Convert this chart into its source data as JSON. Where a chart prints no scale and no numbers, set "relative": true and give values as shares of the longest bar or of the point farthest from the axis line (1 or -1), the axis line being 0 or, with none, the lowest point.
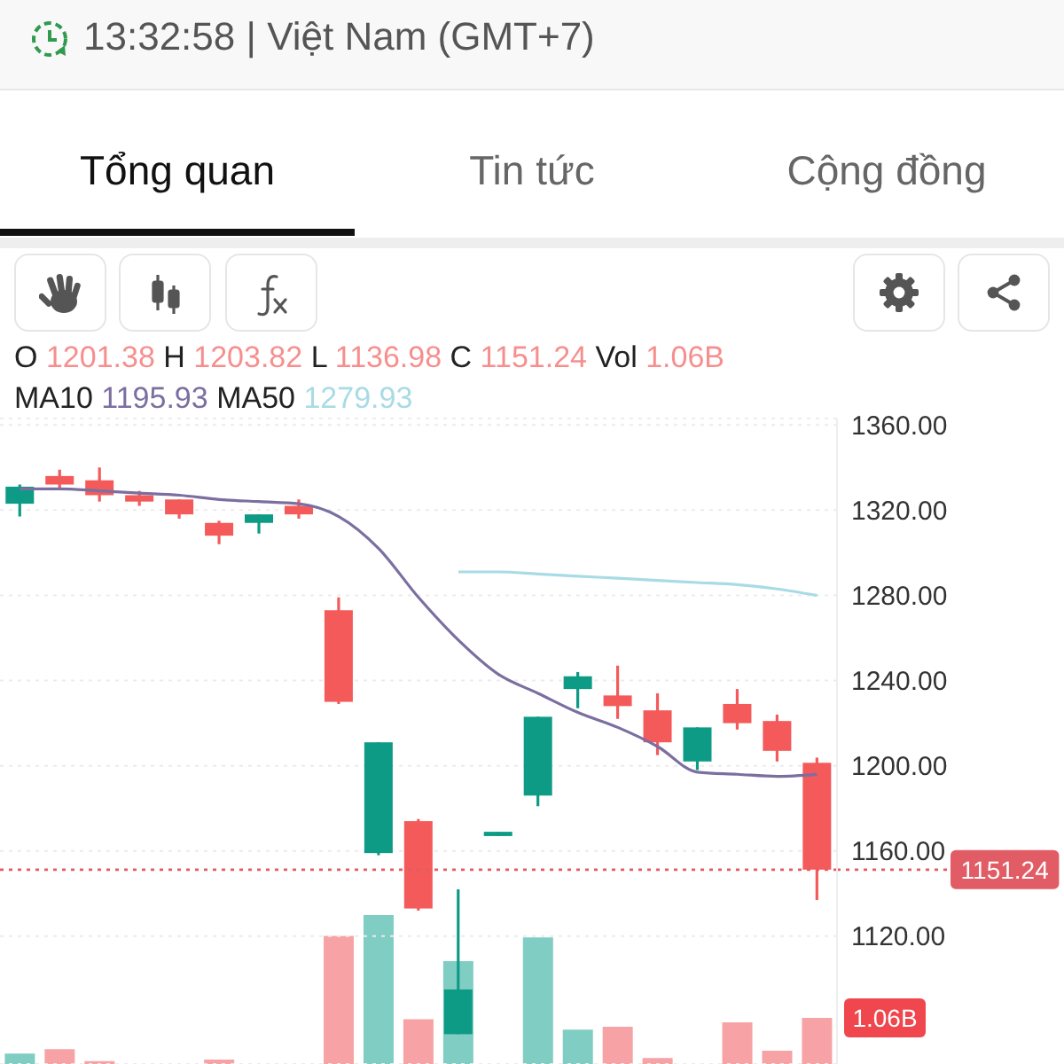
{
  "chart_data": [
    {
      "type": "candlestick",
      "annotations": [
        "13:32:58 | Việt Nam (GMT+7)",
        "Tổng quan",
        "Tin tức",
        "Cộng đồng",
        "O 1201.38 H 1203.82 L 1136.98 C 1151.24 Vol 1.06B",
        "MA10 1195.93 MA50 1279.93"
      ],
      "categories": [
        null,
        null,
        null,
        null,
        null,
        null,
        null,
        null,
        null,
        null,
        null,
        null,
        null,
        null,
        null,
        null,
        null,
        null,
        null,
        null,
        null
      ],
      "ohlc": [
        [
          1323,
          1332,
          1317,
          1331
        ],
        [
          1336,
          1339,
          1330,
          1332
        ],
        [
          1334,
          1340,
          1324,
          1327
        ],
        [
          1327,
          1329,
          1322,
          1324
        ],
        [
          1325,
          1325,
          1316,
          1318
        ],
        [
          1314,
          1315,
          1304,
          1308
        ],
        [
          1314,
          1318,
          1309,
          1318
        ],
        [
          1322,
          1325,
          1316,
          1318
        ],
        [
          1273,
          1279,
          1229,
          1230
        ],
        [
          1159,
          1211,
          1158,
          1211
        ],
        [
          1174,
          1175,
          1132,
          1133
        ],
        [
          1074,
          1142,
          1074,
          1095
        ],
        [
          1167,
          1169,
          1167,
          1169
        ],
        [
          1186,
          1223,
          1181,
          1223
        ],
        [
          1236,
          1244,
          1227,
          1242
        ],
        [
          1233,
          1247,
          1222,
          1228
        ],
        [
          1226,
          1234,
          1205,
          1211
        ],
        [
          1202,
          1218,
          1198,
          1218
        ],
        [
          1229,
          1236,
          1217,
          1220
        ],
        [
          1221,
          1224,
          1202,
          1207
        ],
        [
          1201.38,
          1203.82,
          1136.98,
          1151.24
        ]
      ],
      "colors": [
        "#0e9b85",
        "#f45a5a",
        "#f45a5a",
        "#f45a5a",
        "#f45a5a",
        "#f45a5a",
        "#0e9b85",
        "#f45a5a",
        "#f45a5a",
        "#0e9b85",
        "#f45a5a",
        "#0e9b85",
        "#0e9b85",
        "#0e9b85",
        "#0e9b85",
        "#f45a5a",
        "#f45a5a",
        "#0e9b85",
        "#f45a5a",
        "#f45a5a",
        "#f45a5a"
      ],
      "series": [
        {
          "type": "line",
          "color": "#7b6fa0",
          "values": [
            1330,
            1330,
            1329,
            1328,
            1327,
            1325,
            1324,
            1323,
            1317,
            1302,
            1279,
            1259,
            1243,
            1234,
            1225,
            1218,
            1209,
            1197,
            1196,
            1195,
            1195.93
          ]
        },
        {
          "type": "line",
          "color": "#a8dbe6",
          "values": [
            null,
            null,
            null,
            null,
            null,
            null,
            null,
            null,
            null,
            null,
            null,
            1291,
            1291,
            1290,
            1289,
            1288,
            1287,
            1286,
            1285,
            1283,
            1279.93
          ]
        }
      ],
      "ylim": [
        1060,
        1363
      ],
      "yticks": [
        {
          "value": 1120,
          "label": "1120.00"
        },
        {
          "value": 1160,
          "label": "1160.00"
        },
        {
          "value": 1200,
          "label": "1200.00"
        },
        {
          "value": 1240,
          "label": "1240.00"
        },
        {
          "value": 1280,
          "label": "1280.00"
        },
        {
          "value": 1320,
          "label": "1320.00"
        },
        {
          "value": 1360,
          "label": "1360.00"
        }
      ],
      "ref_lines": [
        {
          "axis": "y",
          "value": 1151.24,
          "label": "1151.24",
          "color": "#e25c66",
          "line_style": "dotted"
        }
      ],
      "grid": "y",
      "tick_labels": "y"
    },
    {
      "type": "bar",
      "categories": [
        null,
        null,
        null,
        null,
        null,
        null,
        null,
        null,
        null,
        null,
        null,
        null,
        null,
        null,
        null,
        null,
        null,
        null,
        null,
        null,
        null
      ],
      "values": [
        0.07,
        0.1,
        0.02,
        null,
        null,
        0.03,
        null,
        null,
        0.86,
        1,
        0.3,
        0.69,
        null,
        0.85,
        0.23,
        0.25,
        0.04,
        null,
        0.28,
        0.09,
        0.31
      ],
      "colors": [
        "#80cdc4",
        "#f7a3a6",
        "#f7a3a6",
        "#f7a3a6",
        "#f7a3a6",
        "#f7a3a6",
        "#80cdc4",
        "#f7a3a6",
        "#f7a3a6",
        "#80cdc4",
        "#f7a3a6",
        "#80cdc4",
        "#80cdc4",
        "#80cdc4",
        "#80cdc4",
        "#f7a3a6",
        "#f7a3a6",
        "#80cdc4",
        "#f7a3a6",
        "#f7a3a6",
        "#f7a3a6"
      ],
      "relative": true,
      "annotations": [
        "1.06B"
      ],
      "tick_labels": false
    }
  ]
}
